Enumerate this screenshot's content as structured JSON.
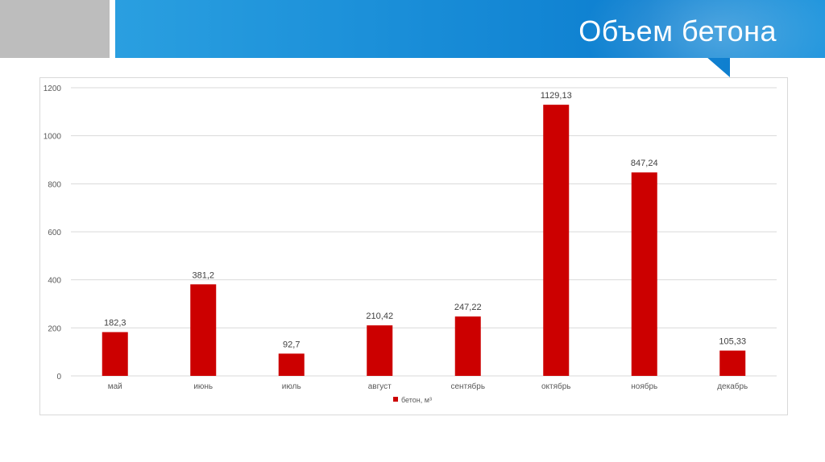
{
  "slide": {
    "title": "Объем бетона"
  },
  "colors": {
    "bar": "#cc0000",
    "grid": "#d9d9d9",
    "text": "#595959"
  },
  "chart_data": {
    "type": "bar",
    "title": "",
    "xlabel": "",
    "ylabel": "",
    "ylim": [
      0,
      1200
    ],
    "yticks": [
      0,
      200,
      400,
      600,
      800,
      1000,
      1200
    ],
    "categories": [
      "май",
      "июнь",
      "июль",
      "август",
      "сентябрь",
      "октябрь",
      "ноябрь",
      "декабрь"
    ],
    "series": [
      {
        "name": "бетон, м³",
        "values": [
          182.3,
          381.2,
          92.7,
          210.42,
          247.22,
          1129.13,
          847.24,
          105.33
        ],
        "labels": [
          "182,3",
          "381,2",
          "92,7",
          "210,42",
          "247,22",
          "1129,13",
          "847,24",
          "105,33"
        ]
      }
    ],
    "legend": "bottom",
    "grid": true
  }
}
